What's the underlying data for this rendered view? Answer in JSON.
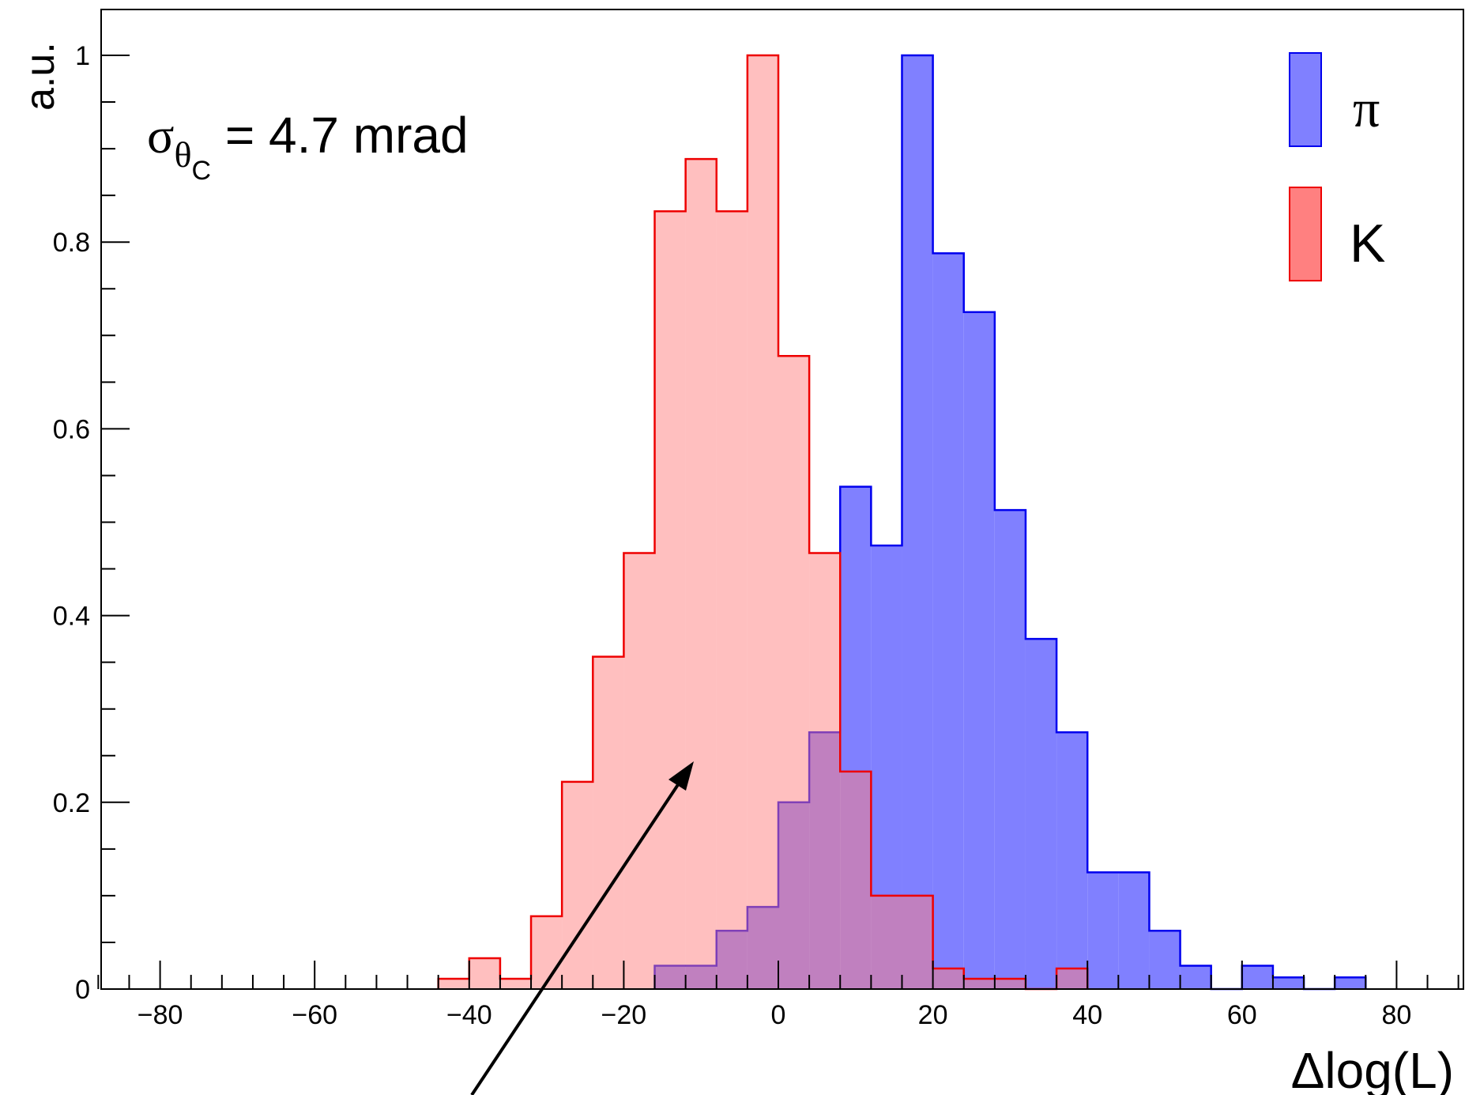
{
  "chart_data": {
    "type": "histogram",
    "title": "",
    "xlabel": "Δlog(L)",
    "ylabel": "a.u.",
    "xlim": [
      -88,
      88
    ],
    "ylim": [
      0,
      1.0
    ],
    "x_ticks": [
      -80,
      -60,
      -40,
      -20,
      0,
      20,
      40,
      60,
      80
    ],
    "x_tick_labels": [
      "−80",
      "−60",
      "−40",
      "−20",
      "0",
      "20",
      "40",
      "60",
      "80"
    ],
    "y_ticks": [
      0,
      0.2,
      0.4,
      0.6,
      0.8,
      1
    ],
    "y_tick_labels": [
      "0",
      "0.2",
      "0.4",
      "0.6",
      "0.8",
      "1"
    ],
    "bin_width": 4,
    "annotation": {
      "symbol": "σ",
      "sub1": "θ",
      "sub2": "C",
      "text": " = 4.7 mrad"
    },
    "legend_position": "top-right",
    "series": [
      {
        "name": "π",
        "color": "#8080ff",
        "edge": "#0000ee",
        "bins_start": -16,
        "values": [
          0.025,
          0.025,
          0.0625,
          0.088,
          0.2,
          0.275,
          0.538,
          0.475,
          1.0,
          0.788,
          0.725,
          0.513,
          0.375,
          0.275,
          0.125,
          0.125,
          0.0625,
          0.025,
          0.0,
          0.025,
          0.0125,
          0.0,
          0.0125
        ]
      },
      {
        "name": "K",
        "color": "#ff8080",
        "edge": "#ee0000",
        "bins_start": -44,
        "values": [
          0.011,
          0.033,
          0.011,
          0.078,
          0.222,
          0.356,
          0.467,
          0.833,
          0.889,
          0.833,
          1.0,
          0.678,
          0.467,
          0.233,
          0.1,
          0.1,
          0.022,
          0.011,
          0.011,
          0.0,
          0.022
        ]
      }
    ]
  }
}
